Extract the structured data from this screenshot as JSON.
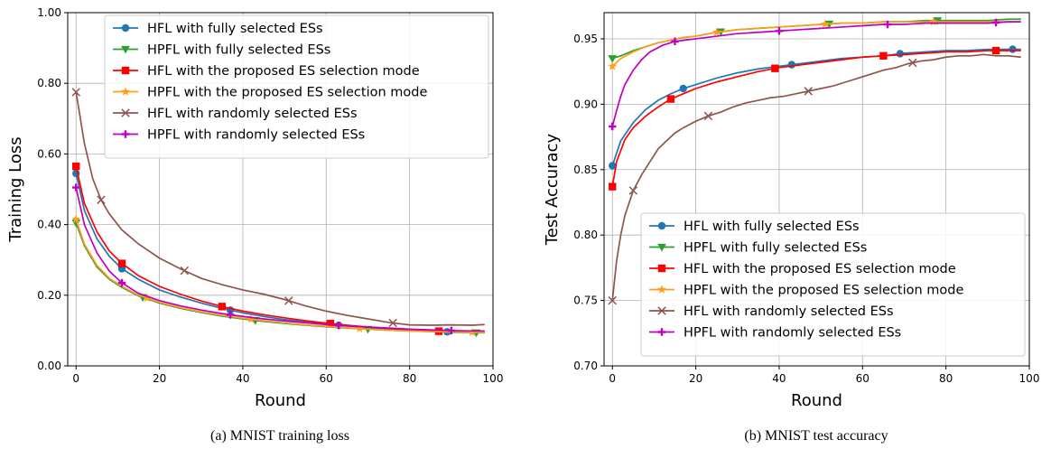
{
  "chart_data": [
    {
      "type": "line",
      "caption": "(a) MNIST training loss",
      "xlabel": "Round",
      "ylabel": "Training Loss",
      "xlim": [
        -2,
        100
      ],
      "ylim": [
        0.0,
        1.0
      ],
      "xticks": [
        "0",
        "20",
        "40",
        "60",
        "80",
        "100"
      ],
      "xtick_values": [
        0,
        20,
        40,
        60,
        80,
        100
      ],
      "yticks": [
        "0.00",
        "0.20",
        "0.40",
        "0.60",
        "0.80",
        "1.00"
      ],
      "ytick_values": [
        0.0,
        0.2,
        0.4,
        0.6,
        0.8,
        1.0
      ],
      "grid": true,
      "legend_position": "top-right",
      "series": [
        {
          "name": "HFL with fully selected ESs",
          "color": "#1f77b4",
          "marker": "circle",
          "x": [
            0,
            2,
            5,
            8,
            11,
            15,
            20,
            25,
            30,
            35,
            40,
            45,
            50,
            55,
            60,
            65,
            70,
            75,
            80,
            85,
            90,
            95,
            98
          ],
          "y": [
            0.545,
            0.44,
            0.36,
            0.31,
            0.275,
            0.245,
            0.215,
            0.195,
            0.178,
            0.163,
            0.15,
            0.14,
            0.131,
            0.124,
            0.118,
            0.113,
            0.108,
            0.104,
            0.101,
            0.098,
            0.096,
            0.095,
            0.095
          ],
          "marker_x": [
            0,
            11,
            37,
            63,
            89
          ]
        },
        {
          "name": "HPFL with fully selected ESs",
          "color": "#2ca02c",
          "marker": "triangle-down",
          "x": [
            0,
            2,
            5,
            8,
            11,
            15,
            20,
            25,
            30,
            35,
            40,
            45,
            50,
            55,
            60,
            65,
            70,
            75,
            80,
            85,
            90,
            95,
            98
          ],
          "y": [
            0.405,
            0.34,
            0.28,
            0.245,
            0.222,
            0.198,
            0.178,
            0.163,
            0.151,
            0.141,
            0.133,
            0.126,
            0.12,
            0.115,
            0.111,
            0.107,
            0.104,
            0.101,
            0.099,
            0.097,
            0.095,
            0.094,
            0.094
          ],
          "marker_x": [
            0,
            16,
            43,
            70,
            96
          ]
        },
        {
          "name": "HFL with the proposed ES selection mode",
          "color": "#ff0000",
          "marker": "square",
          "x": [
            0,
            2,
            5,
            8,
            11,
            15,
            20,
            25,
            30,
            35,
            40,
            45,
            50,
            55,
            60,
            65,
            70,
            75,
            80,
            85,
            90,
            95,
            98
          ],
          "y": [
            0.565,
            0.46,
            0.38,
            0.325,
            0.29,
            0.255,
            0.225,
            0.203,
            0.184,
            0.168,
            0.155,
            0.145,
            0.136,
            0.128,
            0.121,
            0.115,
            0.11,
            0.106,
            0.102,
            0.099,
            0.097,
            0.096,
            0.096
          ],
          "marker_x": [
            0,
            11,
            35,
            61,
            87
          ]
        },
        {
          "name": "HPFL with the proposed ES selection mode",
          "color": "#ff9e1b",
          "marker": "star",
          "x": [
            0,
            2,
            5,
            8,
            11,
            15,
            20,
            25,
            30,
            35,
            40,
            45,
            50,
            55,
            60,
            65,
            70,
            75,
            80,
            85,
            90,
            95,
            98
          ],
          "y": [
            0.415,
            0.345,
            0.285,
            0.248,
            0.225,
            0.2,
            0.18,
            0.165,
            0.153,
            0.143,
            0.135,
            0.128,
            0.122,
            0.116,
            0.112,
            0.108,
            0.104,
            0.101,
            0.099,
            0.097,
            0.096,
            0.095,
            0.095
          ],
          "marker_x": [
            0,
            17,
            42,
            68,
            95
          ]
        },
        {
          "name": "HFL with randomly selected ESs",
          "color": "#8c564b",
          "marker": "x",
          "x": [
            0,
            2,
            4,
            6,
            8,
            11,
            15,
            20,
            25,
            30,
            35,
            40,
            45,
            50,
            55,
            60,
            65,
            70,
            75,
            80,
            85,
            90,
            95,
            98
          ],
          "y": [
            0.775,
            0.63,
            0.53,
            0.47,
            0.43,
            0.385,
            0.345,
            0.305,
            0.275,
            0.248,
            0.23,
            0.215,
            0.203,
            0.188,
            0.17,
            0.155,
            0.143,
            0.133,
            0.123,
            0.116,
            0.115,
            0.116,
            0.115,
            0.117
          ],
          "marker_x": [
            0,
            6,
            26,
            51,
            76
          ]
        },
        {
          "name": "HPFL with randomly selected ESs",
          "color": "#c000c0",
          "marker": "plus",
          "x": [
            0,
            2,
            5,
            8,
            11,
            15,
            20,
            25,
            30,
            35,
            40,
            45,
            50,
            55,
            60,
            65,
            70,
            75,
            80,
            85,
            90,
            95,
            98
          ],
          "y": [
            0.505,
            0.4,
            0.32,
            0.268,
            0.235,
            0.205,
            0.185,
            0.17,
            0.158,
            0.148,
            0.14,
            0.133,
            0.127,
            0.122,
            0.117,
            0.113,
            0.11,
            0.107,
            0.104,
            0.102,
            0.1,
            0.099,
            0.099
          ],
          "marker_x": [
            0,
            11,
            37,
            63,
            90
          ]
        }
      ]
    },
    {
      "type": "line",
      "caption": "(b) MNIST test accuracy",
      "xlabel": "Round",
      "ylabel": "Test Accuracy",
      "xlim": [
        -2,
        100
      ],
      "ylim": [
        0.7,
        0.97
      ],
      "xticks": [
        "0",
        "20",
        "40",
        "60",
        "80",
        "100"
      ],
      "xtick_values": [
        0,
        20,
        40,
        60,
        80,
        100
      ],
      "yticks": [
        "0.70",
        "0.75",
        "0.80",
        "0.85",
        "0.90",
        "0.95"
      ],
      "ytick_values": [
        0.7,
        0.75,
        0.8,
        0.85,
        0.9,
        0.95
      ],
      "grid": true,
      "legend_position": "bottom-right",
      "series": [
        {
          "name": "HFL with fully selected ESs",
          "color": "#1f77b4",
          "marker": "circle",
          "x": [
            0,
            2,
            5,
            8,
            11,
            14,
            17,
            20,
            25,
            30,
            35,
            40,
            45,
            50,
            55,
            60,
            65,
            70,
            75,
            80,
            85,
            90,
            95,
            98
          ],
          "y": [
            0.853,
            0.872,
            0.886,
            0.896,
            0.903,
            0.908,
            0.912,
            0.915,
            0.92,
            0.924,
            0.927,
            0.929,
            0.931,
            0.933,
            0.935,
            0.936,
            0.937,
            0.939,
            0.94,
            0.941,
            0.941,
            0.942,
            0.942,
            0.942
          ],
          "marker_x": [
            0,
            17,
            43,
            69,
            96
          ]
        },
        {
          "name": "HPFL with fully selected ESs",
          "color": "#2ca02c",
          "marker": "triangle-down",
          "x": [
            0,
            2,
            5,
            8,
            11,
            14,
            17,
            20,
            25,
            30,
            35,
            40,
            45,
            50,
            55,
            60,
            65,
            70,
            75,
            80,
            85,
            90,
            95,
            98
          ],
          "y": [
            0.935,
            0.937,
            0.941,
            0.944,
            0.947,
            0.949,
            0.951,
            0.952,
            0.955,
            0.957,
            0.958,
            0.959,
            0.96,
            0.961,
            0.962,
            0.962,
            0.963,
            0.963,
            0.964,
            0.964,
            0.964,
            0.964,
            0.965,
            0.965
          ],
          "marker_x": [
            0,
            26,
            52,
            78
          ]
        },
        {
          "name": "HFL with the proposed ES selection mode",
          "color": "#ff0000",
          "marker": "square",
          "x": [
            0,
            1,
            3,
            5,
            8,
            11,
            14,
            17,
            20,
            25,
            30,
            35,
            40,
            45,
            50,
            55,
            60,
            65,
            70,
            75,
            80,
            85,
            90,
            95,
            98
          ],
          "y": [
            0.837,
            0.856,
            0.873,
            0.882,
            0.891,
            0.898,
            0.904,
            0.908,
            0.912,
            0.917,
            0.921,
            0.925,
            0.928,
            0.93,
            0.932,
            0.934,
            0.936,
            0.937,
            0.938,
            0.939,
            0.94,
            0.94,
            0.941,
            0.941,
            0.941
          ],
          "marker_x": [
            0,
            14,
            39,
            65,
            92
          ]
        },
        {
          "name": "HPFL with the proposed ES selection mode",
          "color": "#ff9e1b",
          "marker": "star",
          "x": [
            0,
            2,
            5,
            8,
            11,
            14,
            17,
            20,
            25,
            30,
            35,
            40,
            45,
            50,
            55,
            60,
            65,
            70,
            75,
            80,
            85,
            90,
            95,
            98
          ],
          "y": [
            0.929,
            0.935,
            0.94,
            0.944,
            0.947,
            0.949,
            0.951,
            0.952,
            0.955,
            0.957,
            0.958,
            0.959,
            0.96,
            0.961,
            0.962,
            0.962,
            0.963,
            0.963,
            0.963,
            0.963,
            0.963,
            0.963,
            0.963,
            0.963
          ],
          "marker_x": [
            0,
            25,
            51,
            77
          ]
        },
        {
          "name": "HFL with randomly selected ESs",
          "color": "#8c564b",
          "marker": "x",
          "x": [
            0,
            1,
            2,
            3,
            5,
            7,
            9,
            11,
            13,
            15,
            17,
            20,
            23,
            26,
            29,
            32,
            35,
            38,
            41,
            44,
            47,
            50,
            53,
            56,
            59,
            62,
            65,
            68,
            71,
            74,
            77,
            80,
            83,
            86,
            89,
            92,
            95,
            98
          ],
          "y": [
            0.75,
            0.78,
            0.8,
            0.815,
            0.834,
            0.846,
            0.856,
            0.866,
            0.872,
            0.878,
            0.882,
            0.887,
            0.891,
            0.894,
            0.898,
            0.901,
            0.903,
            0.905,
            0.906,
            0.908,
            0.91,
            0.912,
            0.914,
            0.917,
            0.92,
            0.923,
            0.926,
            0.928,
            0.931,
            0.933,
            0.934,
            0.936,
            0.937,
            0.937,
            0.938,
            0.937,
            0.937,
            0.936
          ],
          "marker_x": [
            0,
            5,
            23,
            47,
            72
          ]
        },
        {
          "name": "HPFL with randomly selected ESs",
          "color": "#c000c0",
          "marker": "plus",
          "x": [
            0,
            1,
            2,
            3,
            5,
            7,
            9,
            12,
            15,
            20,
            25,
            30,
            35,
            40,
            45,
            50,
            55,
            60,
            65,
            70,
            75,
            80,
            85,
            90,
            95,
            98
          ],
          "y": [
            0.883,
            0.895,
            0.906,
            0.915,
            0.926,
            0.934,
            0.94,
            0.945,
            0.948,
            0.95,
            0.952,
            0.954,
            0.955,
            0.956,
            0.957,
            0.958,
            0.959,
            0.96,
            0.961,
            0.961,
            0.962,
            0.962,
            0.962,
            0.962,
            0.963,
            0.963
          ],
          "marker_x": [
            0,
            15,
            40,
            66,
            92
          ]
        }
      ]
    }
  ]
}
